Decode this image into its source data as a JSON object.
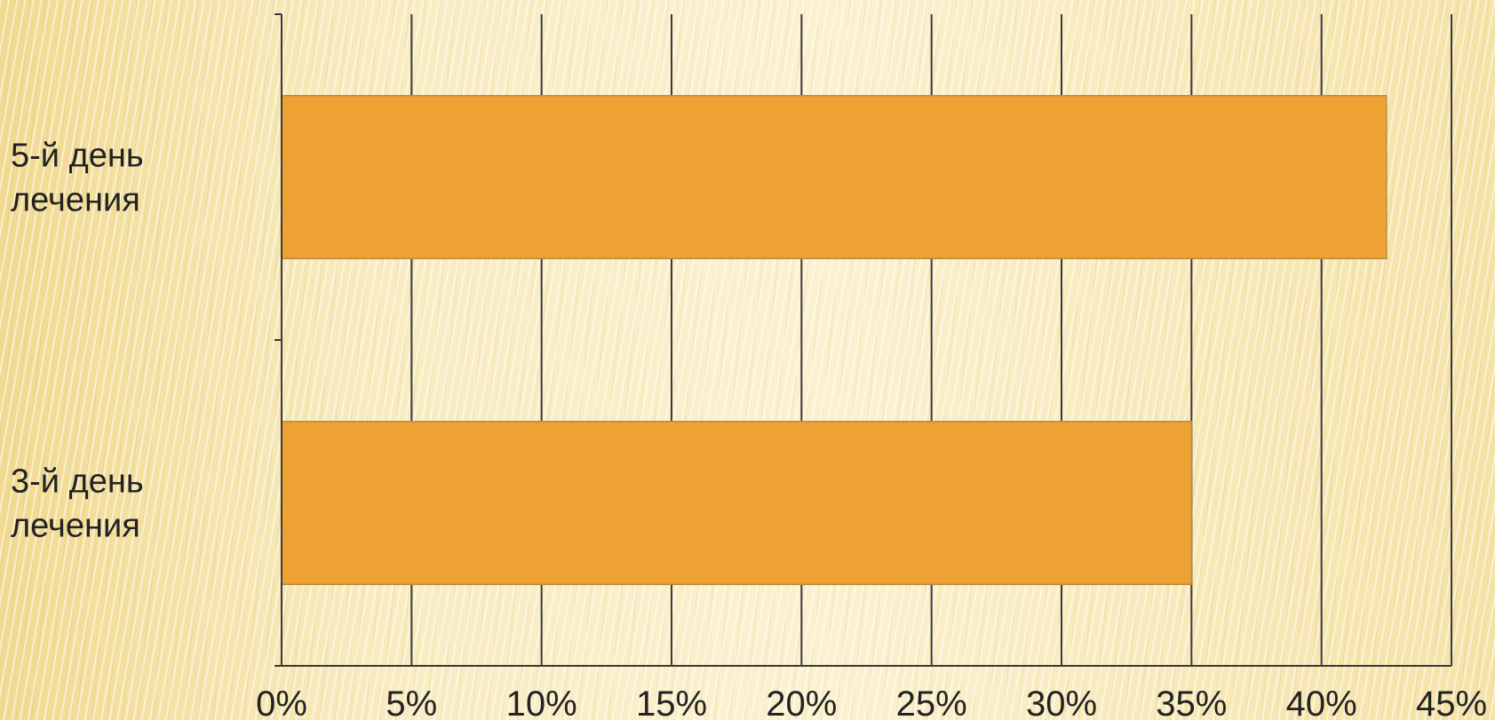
{
  "chart_data": {
    "type": "bar",
    "orientation": "horizontal",
    "categories": [
      [
        "5-й день",
        "лечения"
      ],
      [
        "3-й день",
        "лечения"
      ]
    ],
    "values": [
      42.5,
      35
    ],
    "value_unit": "%",
    "xlim": [
      0,
      45
    ],
    "x_ticks": [
      "0%",
      "5%",
      "10%",
      "15%",
      "20%",
      "25%",
      "30%",
      "35%",
      "40%",
      "45%"
    ],
    "grid": "vertical",
    "legend": "none",
    "bar_color": "#eea233",
    "title": "",
    "xlabel": "",
    "ylabel": ""
  }
}
